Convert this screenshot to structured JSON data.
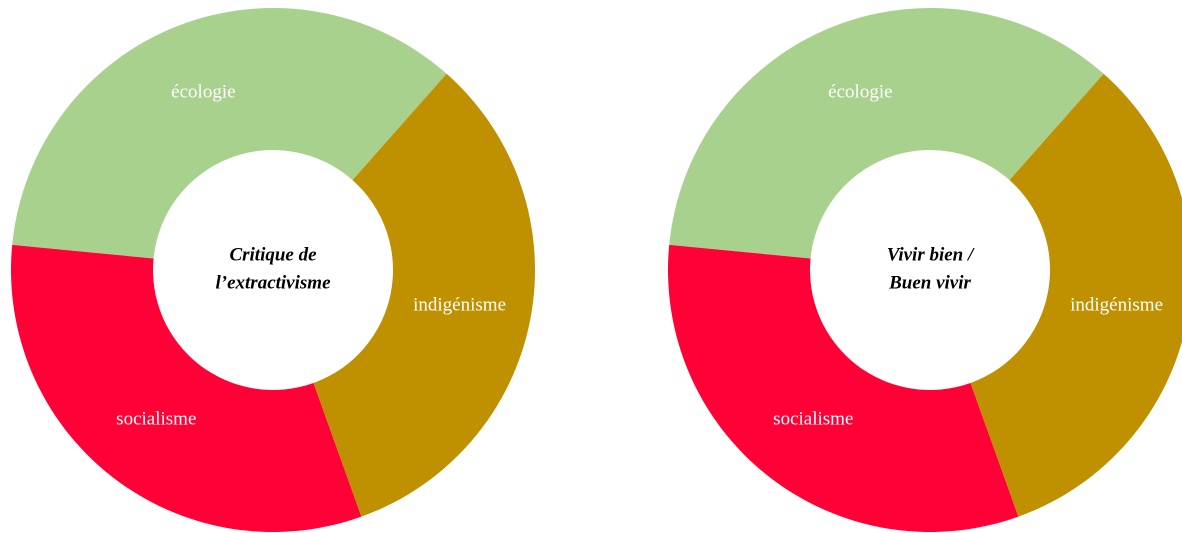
{
  "chart_data": [
    {
      "type": "donut",
      "title": [
        "Critique de",
        "l’extractivisme"
      ],
      "categories": [
        "écologie",
        "indigénisme",
        "socialisme"
      ],
      "values": [
        35,
        33,
        32
      ],
      "colors": [
        "#a9d18e",
        "#bf9000",
        "#ff0037"
      ]
    },
    {
      "type": "donut",
      "title": [
        "Vivir bien /",
        "Buen vivir"
      ],
      "categories": [
        "écologie",
        "indigénisme",
        "socialisme"
      ],
      "values": [
        35,
        33,
        32
      ],
      "colors": [
        "#a9d18e",
        "#bf9000",
        "#ff0037"
      ]
    }
  ]
}
